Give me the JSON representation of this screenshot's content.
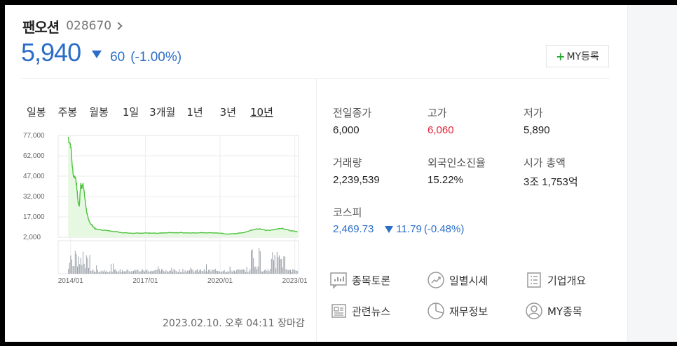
{
  "header": {
    "name": "팬오션",
    "code": "028670",
    "price": "5,940",
    "change": "60",
    "change_pct": "(-1.00%)",
    "my_button": "MY등록",
    "my_plus": "+"
  },
  "periods": [
    "일봉",
    "주봉",
    "월봉",
    "1일",
    "3개월",
    "1년",
    "3년",
    "10년"
  ],
  "active_period": "10년",
  "chart_data": {
    "type": "line",
    "y_ticks": [
      "77,000",
      "62,000",
      "47,000",
      "32,000",
      "17,000",
      "2,000"
    ],
    "x_ticks": [
      "2014/01",
      "2017/01",
      "2020/01",
      "2023/01"
    ],
    "ylim": [
      2000,
      77000
    ],
    "series": [
      {
        "x": [
          2013.9,
          2014.0,
          2014.1,
          2014.2,
          2014.25,
          2014.3,
          2014.35,
          2014.4,
          2014.45,
          2014.5,
          2014.55,
          2014.6,
          2014.65,
          2014.7,
          2014.8,
          2014.9,
          2015.0,
          2015.2,
          2015.4,
          2015.7,
          2016.0,
          2016.5,
          2017.0,
          2017.5,
          2018.0,
          2018.5,
          2019.0,
          2019.5,
          2020.0,
          2020.3,
          2020.6,
          2021.0,
          2021.3,
          2021.6,
          2021.9,
          2022.2,
          2022.5,
          2022.8,
          2023.0,
          2023.11
        ],
        "y": [
          76000,
          70000,
          48000,
          46000,
          38000,
          28000,
          25000,
          41000,
          38000,
          42000,
          34000,
          27000,
          20000,
          16000,
          12000,
          10000,
          8000,
          7500,
          7000,
          6500,
          5500,
          5000,
          5200,
          5000,
          5300,
          5400,
          5200,
          5300,
          4900,
          4200,
          4600,
          5500,
          7500,
          8200,
          7000,
          7800,
          8500,
          7000,
          6500,
          5940
        ]
      }
    ]
  },
  "timestamp": "2023.02.10. 오후 04:11 장마감",
  "stats": {
    "prev_close_label": "전일종가",
    "prev_close": "6,000",
    "high_label": "고가",
    "high": "6,060",
    "low_label": "저가",
    "low": "5,890",
    "volume_label": "거래량",
    "volume": "2,239,539",
    "foreign_label": "외국인소진율",
    "foreign": "15.22%",
    "mcap_label": "시가 총액",
    "mcap": "3조 1,753억",
    "kospi_label": "코스피",
    "kospi": "2,469.73",
    "kospi_change": "11.79",
    "kospi_pct": "(-0.48%)"
  },
  "links": {
    "discussion": "종목토론",
    "daily": "일별시세",
    "company": "기업개요",
    "news": "관련뉴스",
    "finance": "재무정보",
    "my": "MY종목"
  },
  "colors": {
    "down": "#2b6dc8",
    "up": "#e0263b",
    "chart_line": "#4fc33f",
    "chart_fill": "#e6f7e2"
  }
}
